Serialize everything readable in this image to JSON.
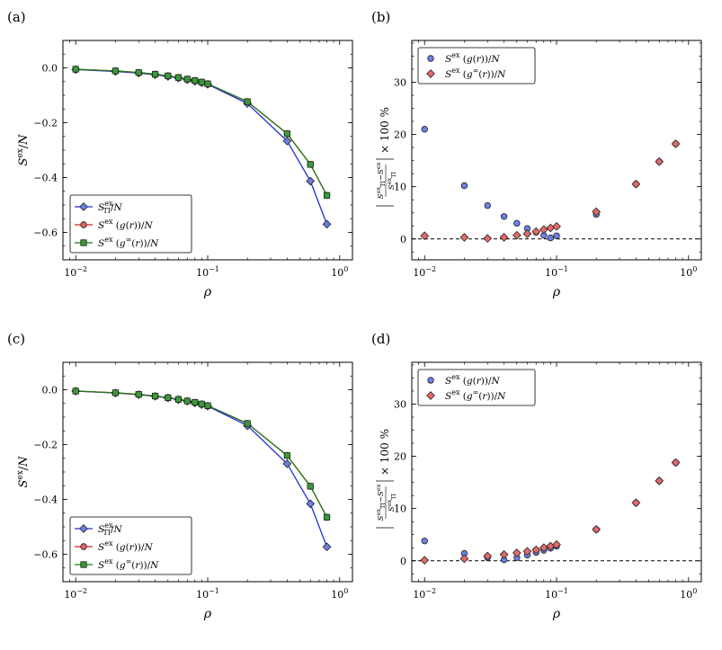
{
  "chart_data": [
    {
      "panel_label": "(a)",
      "type": "line",
      "xlabel": "ρ",
      "ylabel": "S^ex/N",
      "xscale": "log",
      "xlim": [
        0.008,
        1.25
      ],
      "ylim": [
        -0.7,
        0.1
      ],
      "yticks": [
        0.0,
        -0.2,
        -0.4,
        -0.6
      ],
      "ytick_labels": [
        "0.0",
        "−0.2",
        "−0.4",
        "−0.6"
      ],
      "xticks": [
        0.01,
        0.1,
        1
      ],
      "xtick_labels": [
        "10^-2",
        "10^-1",
        "10^0"
      ],
      "legend_position": "lower-left",
      "x": [
        0.01,
        0.02,
        0.03,
        0.04,
        0.05,
        0.06,
        0.07,
        0.08,
        0.09,
        0.1,
        0.2,
        0.4,
        0.6,
        0.8
      ],
      "series": [
        {
          "name": "S_TI^ex/N",
          "color": "#1f2fd6",
          "fill": "#6b7fe0",
          "marker": "diamond",
          "values": [
            -0.006,
            -0.013,
            -0.019,
            -0.025,
            -0.031,
            -0.037,
            -0.043,
            -0.049,
            -0.054,
            -0.06,
            -0.13,
            -0.267,
            -0.413,
            -0.57
          ]
        },
        {
          "name": "S^ex (g(r))/N",
          "color": "#d62020",
          "fill": "#e26060",
          "marker": "circle",
          "values": [
            -0.005,
            -0.011,
            -0.017,
            -0.023,
            -0.029,
            -0.035,
            -0.041,
            -0.046,
            -0.052,
            -0.058,
            -0.123,
            -0.24,
            -0.352,
            -0.465
          ]
        },
        {
          "name": "S^ex (g^∞(r))/N",
          "color": "#1f7a1f",
          "fill": "#3a9a3a",
          "marker": "square",
          "values": [
            -0.005,
            -0.011,
            -0.017,
            -0.023,
            -0.029,
            -0.035,
            -0.041,
            -0.046,
            -0.052,
            -0.058,
            -0.123,
            -0.24,
            -0.352,
            -0.465
          ]
        }
      ]
    },
    {
      "panel_label": "(b)",
      "type": "scatter",
      "xlabel": "ρ",
      "ylabel": "|(S_TI^ex − S^ex)/S_TI^ex| × 100 %",
      "xscale": "log",
      "xlim": [
        0.008,
        1.25
      ],
      "ylim": [
        -4,
        38
      ],
      "yticks": [
        0,
        10,
        20,
        30
      ],
      "ytick_labels": [
        "0",
        "10",
        "20",
        "30"
      ],
      "xticks": [
        0.01,
        0.1,
        1
      ],
      "xtick_labels": [
        "10^-2",
        "10^-1",
        "10^0"
      ],
      "hline": 0,
      "legend_position": "top-left",
      "x": [
        0.01,
        0.02,
        0.03,
        0.04,
        0.05,
        0.06,
        0.07,
        0.08,
        0.09,
        0.1,
        0.2,
        0.4,
        0.6,
        0.8
      ],
      "series": [
        {
          "name": "S^ex (g(r))/N",
          "color": "#2b3aa6",
          "fill": "#6e7fe8",
          "marker": "circle",
          "values": [
            21.0,
            10.2,
            6.4,
            4.3,
            3.0,
            2.0,
            1.3,
            0.7,
            0.2,
            0.6,
            4.7,
            10.5,
            14.8,
            18.2
          ]
        },
        {
          "name": "S^ex (g^∞(r))/N",
          "color": "#7a1818",
          "fill": "#e26a6a",
          "marker": "diamond",
          "values": [
            0.6,
            0.3,
            0.1,
            0.3,
            0.7,
            1.0,
            1.4,
            1.8,
            2.1,
            2.4,
            5.2,
            10.5,
            14.8,
            18.2
          ]
        }
      ]
    },
    {
      "panel_label": "(c)",
      "type": "line",
      "xlabel": "ρ",
      "ylabel": "S^ex/N",
      "xscale": "log",
      "xlim": [
        0.008,
        1.25
      ],
      "ylim": [
        -0.7,
        0.1
      ],
      "yticks": [
        0.0,
        -0.2,
        -0.4,
        -0.6
      ],
      "ytick_labels": [
        "0.0",
        "−0.2",
        "−0.4",
        "−0.6"
      ],
      "xticks": [
        0.01,
        0.1,
        1
      ],
      "xtick_labels": [
        "10^-2",
        "10^-1",
        "10^0"
      ],
      "legend_position": "lower-left",
      "x": [
        0.01,
        0.02,
        0.03,
        0.04,
        0.05,
        0.06,
        0.07,
        0.08,
        0.09,
        0.1,
        0.2,
        0.4,
        0.6,
        0.8
      ],
      "series": [
        {
          "name": "S_TI^ex/N",
          "color": "#1f2fd6",
          "fill": "#6b7fe0",
          "marker": "diamond",
          "values": [
            -0.005,
            -0.012,
            -0.018,
            -0.024,
            -0.03,
            -0.036,
            -0.042,
            -0.048,
            -0.054,
            -0.06,
            -0.131,
            -0.27,
            -0.416,
            -0.573
          ]
        },
        {
          "name": "S^ex (g(r))/N",
          "color": "#d62020",
          "fill": "#e26060",
          "marker": "circle",
          "values": [
            -0.005,
            -0.011,
            -0.017,
            -0.023,
            -0.029,
            -0.035,
            -0.041,
            -0.046,
            -0.052,
            -0.058,
            -0.123,
            -0.24,
            -0.352,
            -0.465
          ]
        },
        {
          "name": "S^ex (g^∞(r))/N",
          "color": "#1f7a1f",
          "fill": "#3a9a3a",
          "marker": "square",
          "values": [
            -0.005,
            -0.011,
            -0.017,
            -0.023,
            -0.029,
            -0.035,
            -0.041,
            -0.046,
            -0.052,
            -0.058,
            -0.123,
            -0.24,
            -0.352,
            -0.465
          ]
        }
      ]
    },
    {
      "panel_label": "(d)",
      "type": "scatter",
      "xlabel": "ρ",
      "ylabel": "|(S_TI^ex − S^ex)/S_TI^ex| × 100 %",
      "xscale": "log",
      "xlim": [
        0.008,
        1.25
      ],
      "ylim": [
        -4,
        38
      ],
      "yticks": [
        0,
        10,
        20,
        30
      ],
      "ytick_labels": [
        "0",
        "10",
        "20",
        "30"
      ],
      "xticks": [
        0.01,
        0.1,
        1
      ],
      "xtick_labels": [
        "10^-2",
        "10^-1",
        "10^0"
      ],
      "hline": 0,
      "legend_position": "top-left",
      "x": [
        0.01,
        0.02,
        0.03,
        0.04,
        0.05,
        0.06,
        0.07,
        0.08,
        0.09,
        0.1,
        0.2,
        0.4,
        0.6,
        0.8
      ],
      "series": [
        {
          "name": "S^ex (g(r))/N",
          "color": "#2b3aa6",
          "fill": "#6e7fe8",
          "marker": "circle",
          "values": [
            3.8,
            1.4,
            0.6,
            0.2,
            0.6,
            1.1,
            1.6,
            2.0,
            2.4,
            2.8,
            6.0,
            11.1,
            15.3,
            18.8
          ]
        },
        {
          "name": "S^ex (g^∞(r))/N",
          "color": "#7a1818",
          "fill": "#e26a6a",
          "marker": "diamond",
          "values": [
            0.1,
            0.4,
            0.9,
            1.2,
            1.5,
            1.8,
            2.1,
            2.5,
            2.8,
            3.1,
            6.0,
            11.1,
            15.3,
            18.8
          ]
        }
      ]
    }
  ]
}
